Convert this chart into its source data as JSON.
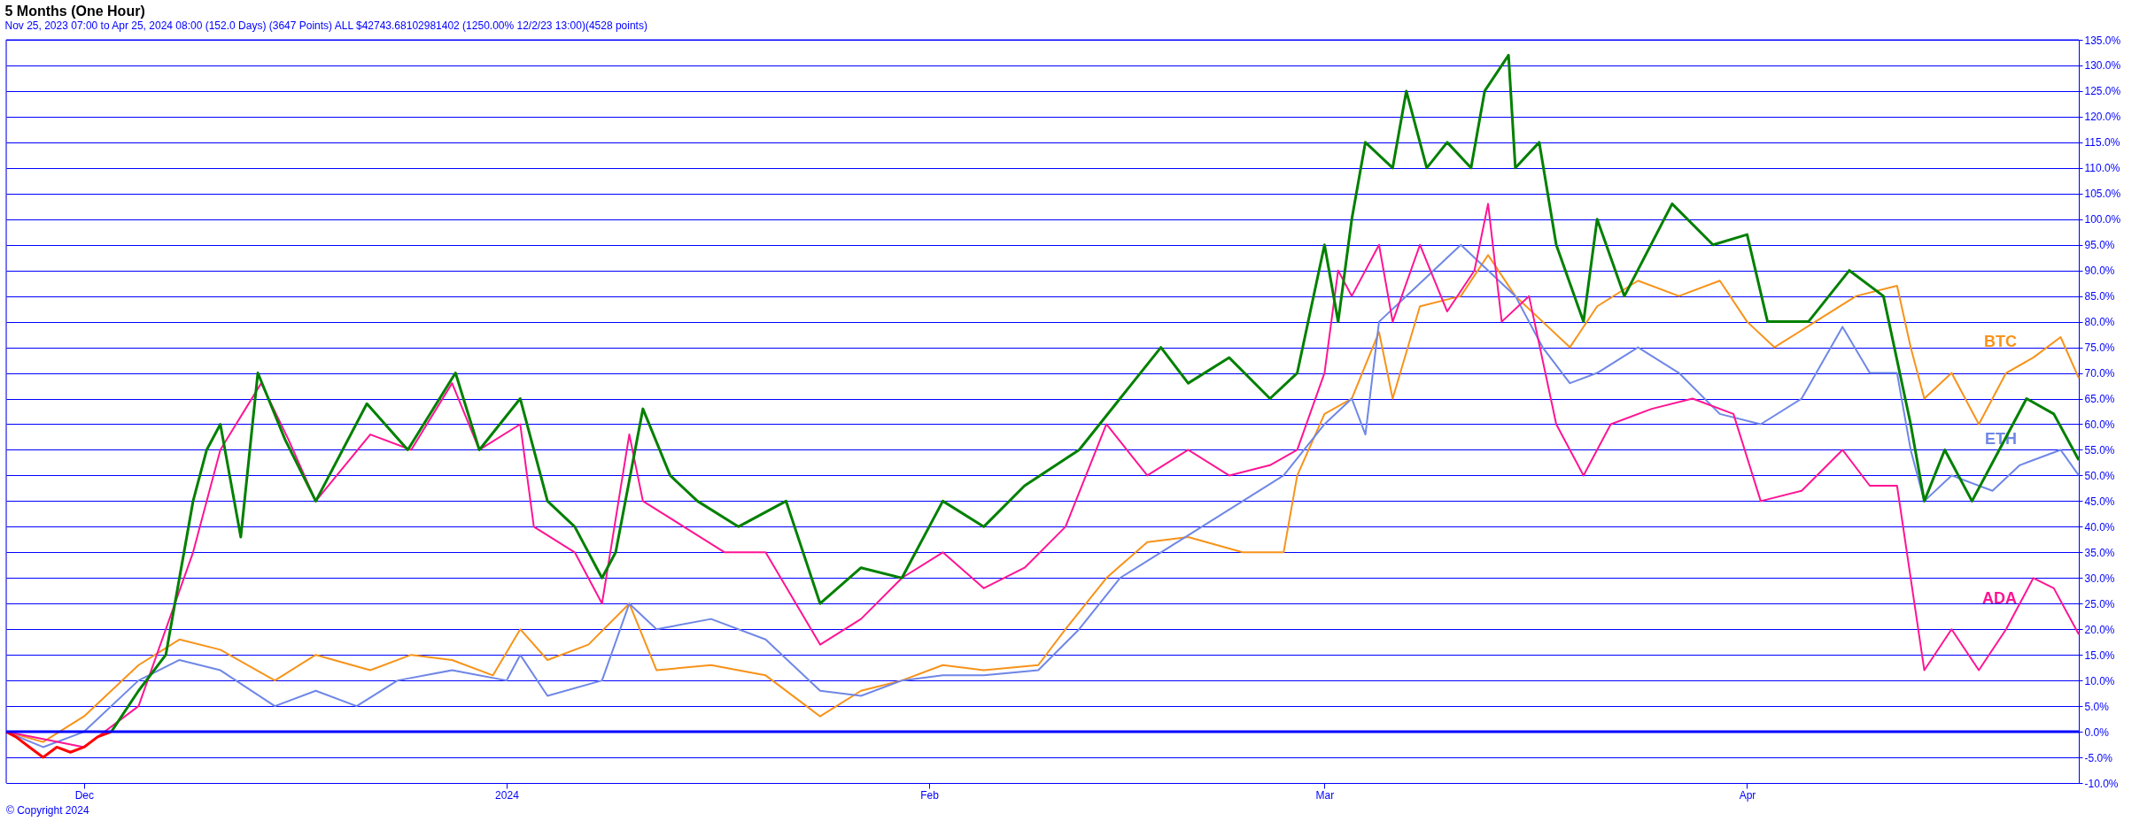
{
  "chart_data": {
    "type": "line",
    "title": "5 Months (One Hour)",
    "subtitle": "Nov 25, 2023 07:00 to Apr 25, 2024 08:00 (152.0 Days) (3647 Points) ALL $42743.68102981402 (1250.00% 12/2/23 13:00)(4528 points)",
    "annotations": [
      "© Copyright 2024"
    ],
    "xlim": [
      "2023-11-25T07:00",
      "2024-04-25T08:00"
    ],
    "xticks": [
      {
        "value": "2023-12-01",
        "label": "Dec"
      },
      {
        "value": "2024-01-01",
        "label": "2024"
      },
      {
        "value": "2024-02-01",
        "label": "Feb"
      },
      {
        "value": "2024-03-01",
        "label": "Mar"
      },
      {
        "value": "2024-04-01",
        "label": "Apr"
      }
    ],
    "ylim": [
      -10,
      135
    ],
    "yticks": [
      {
        "value": -10,
        "label": "-10.0%"
      },
      {
        "value": -5,
        "label": "-5.0%"
      },
      {
        "value": 0,
        "label": "0.0%"
      },
      {
        "value": 5,
        "label": "5.0%"
      },
      {
        "value": 10,
        "label": "10.0%"
      },
      {
        "value": 15,
        "label": "15.0%"
      },
      {
        "value": 20,
        "label": "20.0%"
      },
      {
        "value": 25,
        "label": "25.0%"
      },
      {
        "value": 30,
        "label": "30.0%"
      },
      {
        "value": 35,
        "label": "35.0%"
      },
      {
        "value": 40,
        "label": "40.0%"
      },
      {
        "value": 45,
        "label": "45.0%"
      },
      {
        "value": 50,
        "label": "50.0%"
      },
      {
        "value": 55,
        "label": "55.0%"
      },
      {
        "value": 60,
        "label": "60.0%"
      },
      {
        "value": 65,
        "label": "65.0%"
      },
      {
        "value": 70,
        "label": "70.0%"
      },
      {
        "value": 75,
        "label": "75.0%"
      },
      {
        "value": 80,
        "label": "80.0%"
      },
      {
        "value": 85,
        "label": "85.0%"
      },
      {
        "value": 90,
        "label": "90.0%"
      },
      {
        "value": 95,
        "label": "95.0%"
      },
      {
        "value": 100,
        "label": "100.0%"
      },
      {
        "value": 105,
        "label": "105.0%"
      },
      {
        "value": 110,
        "label": "110.0%"
      },
      {
        "value": 115,
        "label": "115.0%"
      },
      {
        "value": 120,
        "label": "120.0%"
      },
      {
        "value": 125,
        "label": "125.0%"
      },
      {
        "value": 130,
        "label": "130.0%"
      },
      {
        "value": 135,
        "label": "135.0%"
      }
    ],
    "grid": "y",
    "marker": "none",
    "line_style": "solid",
    "ref_lines": [
      {
        "axis": "y",
        "value": 0,
        "color": "#0000ff"
      }
    ],
    "series": [
      {
        "name": "BTC",
        "color": "#f7931a",
        "x": [
          "2023-11-25T07:00",
          "2023-11-28",
          "2023-12-01",
          "2023-12-05",
          "2023-12-08",
          "2023-12-11",
          "2023-12-15",
          "2023-12-18",
          "2023-12-22",
          "2023-12-25",
          "2023-12-28",
          "2023-12-31",
          "2024-01-02",
          "2024-01-04",
          "2024-01-07",
          "2024-01-10",
          "2024-01-12",
          "2024-01-16",
          "2024-01-20",
          "2024-01-23",
          "2024-01-24",
          "2024-01-27",
          "2024-01-30",
          "2024-02-02",
          "2024-02-05",
          "2024-02-09",
          "2024-02-11",
          "2024-02-14",
          "2024-02-17",
          "2024-02-20",
          "2024-02-24",
          "2024-02-27",
          "2024-02-28",
          "2024-03-01",
          "2024-03-03",
          "2024-03-05",
          "2024-03-06",
          "2024-03-08",
          "2024-03-11",
          "2024-03-13",
          "2024-03-15",
          "2024-03-17",
          "2024-03-19",
          "2024-03-21",
          "2024-03-24",
          "2024-03-27",
          "2024-03-30",
          "2024-04-01",
          "2024-04-03",
          "2024-04-06",
          "2024-04-09",
          "2024-04-12",
          "2024-04-13",
          "2024-04-14",
          "2024-04-16",
          "2024-04-18",
          "2024-04-20",
          "2024-04-22",
          "2024-04-24",
          "2024-04-25T08:00"
        ],
        "values": [
          0,
          -2,
          3,
          13,
          18,
          16,
          10,
          15,
          12,
          15,
          14,
          11,
          20,
          14,
          17,
          25,
          12,
          13,
          11,
          5,
          3,
          8,
          10,
          13,
          12,
          13,
          20,
          30,
          37,
          38,
          35,
          35,
          50,
          62,
          65,
          78,
          65,
          83,
          85,
          93,
          85,
          80,
          75,
          83,
          88,
          85,
          88,
          80,
          75,
          80,
          85,
          87,
          75,
          65,
          70,
          60,
          70,
          73,
          77,
          69
        ]
      },
      {
        "name": "ETH",
        "color": "#6f87e6",
        "x": [
          "2023-11-25T07:00",
          "2023-11-28",
          "2023-12-01",
          "2023-12-05",
          "2023-12-08",
          "2023-12-11",
          "2023-12-15",
          "2023-12-18",
          "2023-12-21",
          "2023-12-24",
          "2023-12-28",
          "2024-01-01",
          "2024-01-02",
          "2024-01-04",
          "2024-01-08",
          "2024-01-10",
          "2024-01-12",
          "2024-01-16",
          "2024-01-20",
          "2024-01-24",
          "2024-01-27",
          "2024-01-30",
          "2024-02-02",
          "2024-02-05",
          "2024-02-09",
          "2024-02-12",
          "2024-02-15",
          "2024-02-18",
          "2024-02-21",
          "2024-02-24",
          "2024-02-27",
          "2024-03-01",
          "2024-03-03",
          "2024-03-04",
          "2024-03-05",
          "2024-03-07",
          "2024-03-09",
          "2024-03-11",
          "2024-03-13",
          "2024-03-15",
          "2024-03-17",
          "2024-03-19",
          "2024-03-21",
          "2024-03-24",
          "2024-03-27",
          "2024-03-30",
          "2024-04-02",
          "2024-04-05",
          "2024-04-08",
          "2024-04-10",
          "2024-04-12",
          "2024-04-13",
          "2024-04-14",
          "2024-04-16",
          "2024-04-19",
          "2024-04-21",
          "2024-04-24",
          "2024-04-25T08:00"
        ],
        "values": [
          0,
          -3,
          0,
          10,
          14,
          12,
          5,
          8,
          5,
          10,
          12,
          10,
          15,
          7,
          10,
          25,
          20,
          22,
          18,
          8,
          7,
          10,
          11,
          11,
          12,
          20,
          30,
          35,
          40,
          45,
          50,
          60,
          65,
          58,
          80,
          85,
          90,
          95,
          90,
          85,
          75,
          68,
          70,
          75,
          70,
          62,
          60,
          65,
          79,
          70,
          70,
          55,
          45,
          50,
          47,
          52,
          55,
          50
        ]
      },
      {
        "name": "ADA",
        "color": "#ff1493",
        "x": [
          "2023-11-25T07:00",
          "2023-12-01",
          "2023-12-05",
          "2023-12-09",
          "2023-12-11",
          "2023-12-14",
          "2023-12-16",
          "2023-12-18",
          "2023-12-22",
          "2023-12-25",
          "2023-12-28",
          "2023-12-30",
          "2024-01-02",
          "2024-01-03",
          "2024-01-06",
          "2024-01-08",
          "2024-01-10",
          "2024-01-11",
          "2024-01-14",
          "2024-01-17",
          "2024-01-20",
          "2024-01-24",
          "2024-01-27",
          "2024-01-30",
          "2024-02-02",
          "2024-02-05",
          "2024-02-08",
          "2024-02-11",
          "2024-02-14",
          "2024-02-17",
          "2024-02-20",
          "2024-02-23",
          "2024-02-26",
          "2024-02-28",
          "2024-03-01",
          "2024-03-02",
          "2024-03-03",
          "2024-03-05",
          "2024-03-06",
          "2024-03-08",
          "2024-03-10",
          "2024-03-12",
          "2024-03-13",
          "2024-03-14",
          "2024-03-16",
          "2024-03-18",
          "2024-03-20",
          "2024-03-22",
          "2024-03-25",
          "2024-03-28",
          "2024-03-31",
          "2024-04-02",
          "2024-04-05",
          "2024-04-08",
          "2024-04-10",
          "2024-04-12",
          "2024-04-13",
          "2024-04-14",
          "2024-04-16",
          "2024-04-18",
          "2024-04-20",
          "2024-04-22",
          "2024-04-23T12:00",
          "2024-04-25T08:00"
        ],
        "values": [
          0,
          -3,
          5,
          35,
          55,
          68,
          57,
          45,
          58,
          55,
          68,
          55,
          60,
          40,
          35,
          25,
          58,
          45,
          40,
          35,
          35,
          17,
          22,
          30,
          35,
          28,
          32,
          40,
          60,
          50,
          55,
          50,
          52,
          55,
          70,
          90,
          85,
          95,
          80,
          95,
          82,
          90,
          103,
          80,
          85,
          60,
          50,
          60,
          63,
          65,
          62,
          45,
          47,
          55,
          48,
          48,
          30,
          12,
          20,
          12,
          20,
          30,
          28,
          19
        ]
      },
      {
        "color": "#ff0000",
        "x": [
          "2023-11-25T07:00",
          "2023-11-26",
          "2023-11-27",
          "2023-11-28",
          "2023-11-29",
          "2023-11-30",
          "2023-12-01",
          "2023-12-02",
          "2023-12-03"
        ],
        "values": [
          0,
          -1,
          -3,
          -5,
          -3,
          -4,
          -3,
          -1,
          0
        ]
      },
      {
        "color": "#008000",
        "x": [
          "2023-12-03",
          "2023-12-05",
          "2023-12-07",
          "2023-12-09",
          "2023-12-10",
          "2023-12-11",
          "2023-12-12T12:00",
          "2023-12-13T18:00",
          "2023-12-15T18:00",
          "2023-12-18",
          "2023-12-21T18:00",
          "2023-12-24T18:00",
          "2023-12-28T06:00",
          "2023-12-30",
          "2024-01-02",
          "2024-01-04",
          "2024-01-06",
          "2024-01-08",
          "2024-01-09",
          "2024-01-11",
          "2024-01-13",
          "2024-01-15",
          "2024-01-18",
          "2024-01-21T12:00",
          "2024-01-24",
          "2024-01-27",
          "2024-01-30",
          "2024-02-02",
          "2024-02-05",
          "2024-02-08",
          "2024-02-12",
          "2024-02-15",
          "2024-02-18",
          "2024-02-20",
          "2024-02-23",
          "2024-02-26",
          "2024-02-28",
          "2024-03-01",
          "2024-03-02",
          "2024-03-03",
          "2024-03-04",
          "2024-03-06",
          "2024-03-07",
          "2024-03-08T12:00",
          "2024-03-10",
          "2024-03-11T18:00",
          "2024-03-12T18:00",
          "2024-03-14T12:00",
          "2024-03-15",
          "2024-03-16T18:00",
          "2024-03-18",
          "2024-03-20",
          "2024-03-21",
          "2024-03-23",
          "2024-03-26T12:00",
          "2024-03-29T12:00",
          "2024-04-01",
          "2024-04-02T12:00",
          "2024-04-05T12:00",
          "2024-04-08T12:00",
          "2024-04-11",
          "2024-04-13",
          "2024-04-14",
          "2024-04-15T12:00",
          "2024-04-17T12:00",
          "2024-04-19T12:00",
          "2024-04-21T12:00",
          "2024-04-23T12:00",
          "2024-04-25T08:00"
        ],
        "values": [
          0,
          8,
          15,
          45,
          55,
          60,
          38,
          70,
          57,
          45,
          64,
          55,
          70,
          55,
          65,
          45,
          40,
          30,
          35,
          63,
          50,
          45,
          40,
          45,
          25,
          32,
          30,
          45,
          40,
          48,
          55,
          65,
          75,
          68,
          73,
          65,
          70,
          95,
          80,
          100,
          115,
          110,
          125,
          110,
          115,
          110,
          125,
          132,
          110,
          115,
          95,
          80,
          100,
          85,
          103,
          95,
          97,
          80,
          80,
          90,
          85,
          60,
          45,
          55,
          45,
          55,
          65,
          62,
          53
        ]
      }
    ]
  }
}
